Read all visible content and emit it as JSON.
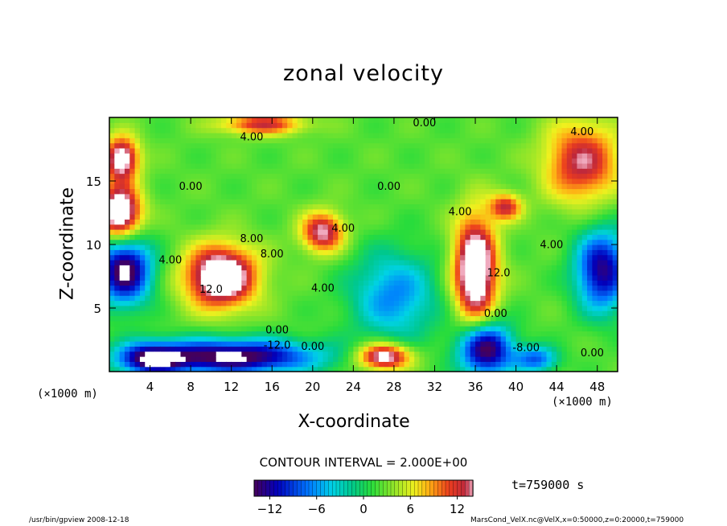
{
  "chart_data": {
    "type": "heatmap",
    "title": "zonal velocity",
    "xlabel": "X-coordinate",
    "ylabel": "Z-coordinate",
    "x_unit": "(×1000 m)",
    "y_unit": "(×1000 m)",
    "xlim": [
      0,
      50
    ],
    "ylim": [
      0,
      20
    ],
    "x_ticks": [
      4,
      8,
      12,
      16,
      20,
      24,
      28,
      32,
      36,
      40,
      44,
      48
    ],
    "y_ticks": [
      5,
      10,
      15
    ],
    "contour_interval_text": "CONTOUR INTERVAL = 2.000E+00",
    "colorbar": {
      "range": [
        -14,
        14
      ],
      "ticks": [
        -12,
        -6,
        0,
        6,
        12
      ],
      "tick_labels": [
        "−12",
        "−6",
        "0",
        "6",
        "12"
      ]
    },
    "time_label": "t=759000 s",
    "contour_labels": [
      {
        "text": "0.00",
        "x": 31,
        "z": 19.3
      },
      {
        "text": "4.00",
        "x": 14,
        "z": 18.2
      },
      {
        "text": "0.00",
        "x": 8,
        "z": 14.3
      },
      {
        "text": "0.00",
        "x": 27.5,
        "z": 14.3
      },
      {
        "text": "4.00",
        "x": 34.5,
        "z": 12.3
      },
      {
        "text": "4.00",
        "x": 23,
        "z": 11.0
      },
      {
        "text": "8.00",
        "x": 14,
        "z": 10.2
      },
      {
        "text": "8.00",
        "x": 16,
        "z": 9.0
      },
      {
        "text": "4.00",
        "x": 6,
        "z": 8.5
      },
      {
        "text": "12.0",
        "x": 10,
        "z": 6.2
      },
      {
        "text": "4.00",
        "x": 21,
        "z": 6.3
      },
      {
        "text": "12.0",
        "x": 38.3,
        "z": 7.5
      },
      {
        "text": "4.00",
        "x": 43.5,
        "z": 9.7
      },
      {
        "text": "0.00",
        "x": 16.5,
        "z": 3.0
      },
      {
        "text": "0.00",
        "x": 38,
        "z": 4.3
      },
      {
        "text": "-12.0",
        "x": 16.5,
        "z": 1.8
      },
      {
        "text": "0.00",
        "x": 20,
        "z": 1.7
      },
      {
        "text": "-8.00",
        "x": 41,
        "z": 1.6
      },
      {
        "text": "0.00",
        "x": 47.5,
        "z": 1.2
      },
      {
        "text": "4.00",
        "x": 46.5,
        "z": 18.6
      }
    ],
    "features": [
      {
        "x": 11.0,
        "z": 7.5,
        "rx": 3.3,
        "rz": 2.3,
        "value": 14
      },
      {
        "x": 36.0,
        "z": 8.0,
        "rx": 2.0,
        "rz": 4.0,
        "value": 14
      },
      {
        "x": 21.0,
        "z": 11.0,
        "rx": 2.0,
        "rz": 1.5,
        "value": 10
      },
      {
        "x": 1.0,
        "z": 12.5,
        "rx": 2.0,
        "rz": 2.0,
        "value": 14
      },
      {
        "x": 1.2,
        "z": 16.8,
        "rx": 1.6,
        "rz": 1.6,
        "value": 12
      },
      {
        "x": 46.5,
        "z": 16.5,
        "rx": 3.5,
        "rz": 3.0,
        "value": 9
      },
      {
        "x": 39.0,
        "z": 13.0,
        "rx": 1.5,
        "rz": 1.0,
        "value": 8
      },
      {
        "x": 15.0,
        "z": 19.5,
        "rx": 4.0,
        "rz": 0.8,
        "value": 8
      },
      {
        "x": 1.5,
        "z": 8.0,
        "rx": 2.5,
        "rz": 2.5,
        "value": -14
      },
      {
        "x": 28.0,
        "z": 6.0,
        "rx": 4.0,
        "rz": 3.3,
        "value": -7
      },
      {
        "x": 12.0,
        "z": 1.2,
        "rx": 8.0,
        "rz": 1.3,
        "value": -14
      },
      {
        "x": 37.0,
        "z": 1.8,
        "rx": 2.5,
        "rz": 2.0,
        "value": -14
      },
      {
        "x": 48.5,
        "z": 8.0,
        "rx": 2.5,
        "rz": 3.0,
        "value": -12
      },
      {
        "x": 4.0,
        "z": 1.0,
        "rx": 3.0,
        "rz": 1.2,
        "value": -10
      },
      {
        "x": 42.0,
        "z": 1.0,
        "rx": 2.0,
        "rz": 1.0,
        "value": -8
      },
      {
        "x": 27.0,
        "z": 1.2,
        "rx": 2.5,
        "rz": 1.0,
        "value": 12
      }
    ]
  },
  "footer_left": "/usr/bin/gpview   2008-12-18",
  "footer_right": "MarsCond_VelX.nc@VelX,x=0:50000,z=0:20000,t=759000"
}
